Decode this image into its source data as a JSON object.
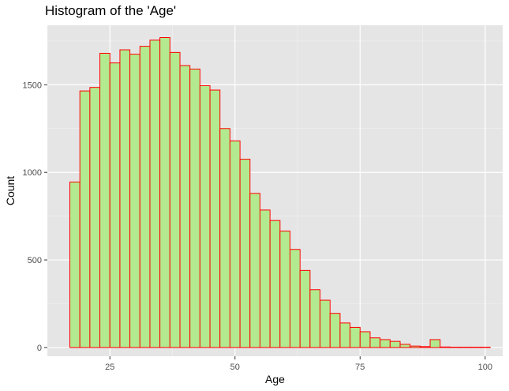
{
  "chart_data": {
    "type": "bar",
    "title": "Histogram of the 'Age'",
    "xlabel": "Age",
    "ylabel": "Count",
    "xlim": [
      12.5,
      103.5
    ],
    "ylim": [
      -50,
      1840
    ],
    "x_ticks": [
      25,
      50,
      75,
      100
    ],
    "y_ticks": [
      0,
      500,
      1000,
      1500
    ],
    "bin_width": 2,
    "bin_start": 17,
    "counts": [
      945,
      1465,
      1485,
      1680,
      1625,
      1700,
      1675,
      1720,
      1755,
      1770,
      1685,
      1610,
      1590,
      1495,
      1470,
      1250,
      1180,
      1075,
      880,
      785,
      725,
      665,
      560,
      440,
      330,
      270,
      195,
      140,
      115,
      90,
      55,
      45,
      35,
      18,
      8,
      5,
      45,
      3,
      2,
      2,
      2,
      2
    ],
    "grid": true,
    "fill_color": "#b3ea8f",
    "edge_color": "#ff0000",
    "panel_color": "#e5e5e5"
  }
}
